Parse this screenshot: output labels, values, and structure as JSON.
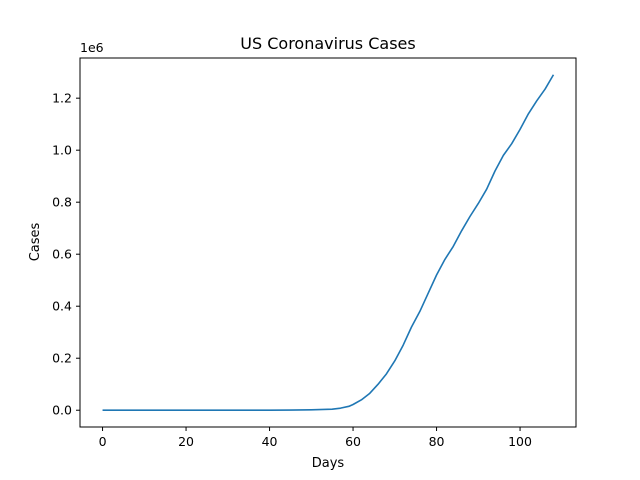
{
  "chart_data": {
    "type": "line",
    "title": "US Coronavirus Cases",
    "xlabel": "Days",
    "ylabel": "Cases",
    "y_offset_label": "1e6",
    "xlim": [
      -5.4,
      113.4
    ],
    "ylim": [
      -64500,
      1354500
    ],
    "x_ticks": [
      0,
      20,
      40,
      60,
      80,
      100
    ],
    "x_tick_labels": [
      "0",
      "20",
      "40",
      "60",
      "80",
      "100"
    ],
    "y_ticks": [
      0,
      200000,
      400000,
      600000,
      800000,
      1000000,
      1200000
    ],
    "y_tick_labels": [
      "0.0",
      "0.2",
      "0.4",
      "0.6",
      "0.8",
      "1.0",
      "1.2"
    ],
    "grid": false,
    "colors": {
      "line": "#1f77b4",
      "axis": "#000000",
      "background": "#ffffff"
    },
    "series": [
      {
        "x": [
          0,
          10,
          20,
          30,
          40,
          45,
          50,
          55,
          57,
          59,
          60,
          62,
          64,
          66,
          68,
          70,
          72,
          74,
          76,
          78,
          80,
          82,
          84,
          86,
          88,
          90,
          92,
          94,
          96,
          98,
          100,
          102,
          104,
          106,
          108
        ],
        "y": [
          1,
          5,
          10,
          20,
          100,
          500,
          1500,
          4000,
          8000,
          15000,
          22000,
          40000,
          65000,
          100000,
          140000,
          190000,
          250000,
          320000,
          380000,
          450000,
          520000,
          580000,
          630000,
          690000,
          745000,
          795000,
          850000,
          920000,
          980000,
          1025000,
          1080000,
          1140000,
          1190000,
          1235000,
          1290000
        ]
      }
    ]
  }
}
